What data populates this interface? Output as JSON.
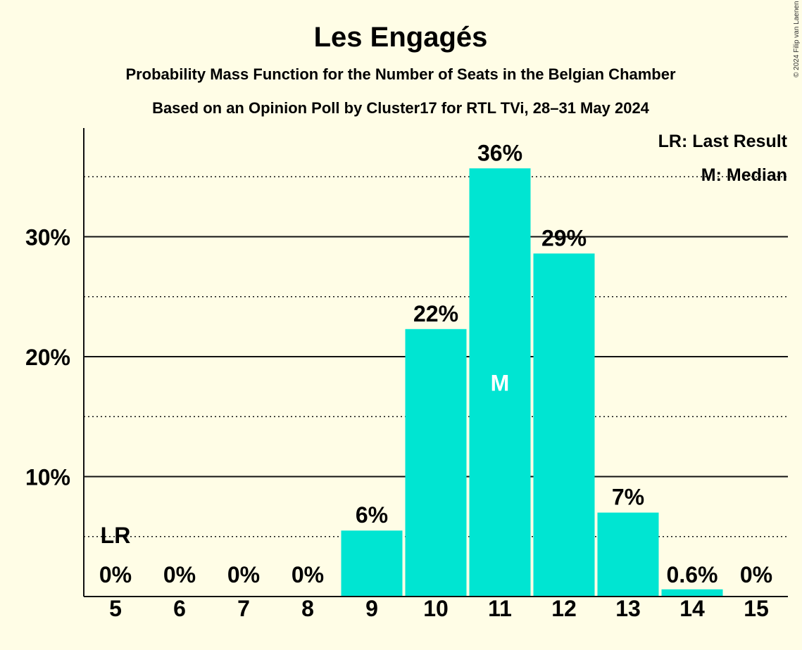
{
  "chart_data": {
    "type": "bar",
    "title": "Les Engagés",
    "subtitle1": "Probability Mass Function for the Number of Seats in the Belgian Chamber",
    "subtitle2": "Based on an Opinion Poll by Cluster17 for RTL TVi, 28–31 May 2024",
    "copyright": "© 2024 Filip van Laenen",
    "categories": [
      "5",
      "6",
      "7",
      "8",
      "9",
      "10",
      "11",
      "12",
      "13",
      "14",
      "15"
    ],
    "values": [
      0,
      0,
      0,
      0,
      5.5,
      22.3,
      35.7,
      28.6,
      7.0,
      0.6,
      0
    ],
    "data_labels": [
      "0%",
      "0%",
      "0%",
      "0%",
      "6%",
      "22%",
      "36%",
      "29%",
      "7%",
      "0.6%",
      "0%"
    ],
    "ylim": [
      0,
      39
    ],
    "yticks": [
      10,
      20,
      30
    ],
    "ytick_labels": [
      "10%",
      "20%",
      "30%"
    ],
    "dotted_gridlines": [
      5,
      15,
      25,
      35
    ],
    "last_result_seat": "5",
    "last_result_marker": "LR",
    "median_seat": "11",
    "median_marker": "M",
    "legend": [
      "LR: Last Result",
      "M: Median"
    ],
    "legend_position": "top-right",
    "bar_color": "#00E5D2",
    "background_color": "#FFFDE6"
  }
}
